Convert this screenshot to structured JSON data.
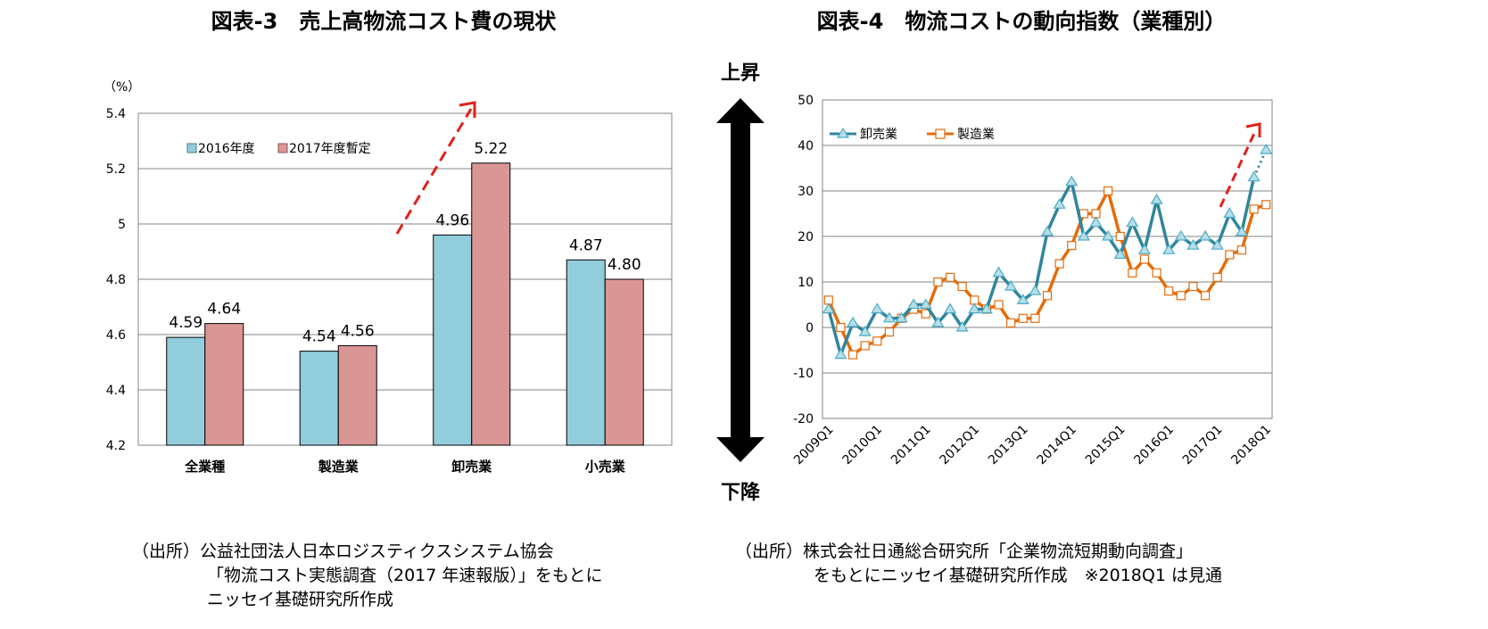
{
  "chart_data": [
    {
      "type": "bar",
      "title": "図表-3　売上高物流コスト費の現状",
      "unit_label": "（%）",
      "categories": [
        "全業種",
        "製造業",
        "卸売業",
        "小売業"
      ],
      "series": [
        {
          "name": "2016年度",
          "values": [
            4.59,
            4.54,
            4.96,
            4.87
          ],
          "labels": [
            "4.59",
            "4.54",
            "4.96",
            "4.87"
          ],
          "color": "#92cddc"
        },
        {
          "name": "2017年度暫定",
          "values": [
            4.64,
            4.56,
            5.22,
            4.8
          ],
          "labels": [
            "4.64",
            "4.56",
            "5.22",
            "4.80"
          ],
          "color": "#d99694"
        }
      ],
      "ylim": [
        4.2,
        5.4
      ],
      "yticks": [
        "4.2",
        "4.4",
        "4.6",
        "4.8",
        "5",
        "5.2",
        "5.4"
      ],
      "grid": true,
      "legend": "top-left",
      "source": [
        "（出所）公益社団法人日本ロジスティクスシステム協会",
        "「物流コスト実態調査（2017 年速報版）」をもとに",
        "ニッセイ基礎研究所作成"
      ]
    },
    {
      "type": "line",
      "title": "図表-4　物流コストの動向指数（業種別）",
      "up_label": "上昇",
      "down_label": "下降",
      "x": [
        "2009Q1",
        "2009Q2",
        "2009Q3",
        "2009Q4",
        "2010Q1",
        "2010Q2",
        "2010Q3",
        "2010Q4",
        "2011Q1",
        "2011Q2",
        "2011Q3",
        "2011Q4",
        "2012Q1",
        "2012Q2",
        "2012Q3",
        "2012Q4",
        "2013Q1",
        "2013Q2",
        "2013Q3",
        "2013Q4",
        "2014Q1",
        "2014Q2",
        "2014Q3",
        "2014Q4",
        "2015Q1",
        "2015Q2",
        "2015Q3",
        "2015Q4",
        "2016Q1",
        "2016Q2",
        "2016Q3",
        "2016Q4",
        "2017Q1",
        "2017Q2",
        "2017Q3",
        "2017Q4",
        "2018Q1"
      ],
      "xticks": [
        "2009Q1",
        "2010Q1",
        "2011Q1",
        "2012Q1",
        "2013Q1",
        "2014Q1",
        "2015Q1",
        "2016Q1",
        "2017Q1",
        "2018Q1"
      ],
      "series": [
        {
          "name": "卸売業",
          "color": "#31859c",
          "values": [
            4,
            -6,
            1,
            -1,
            4,
            2,
            2,
            5,
            5,
            1,
            4,
            0,
            4,
            4,
            12,
            9,
            6,
            8,
            21,
            27,
            32,
            20,
            23,
            20,
            16,
            23,
            17,
            28,
            17,
            20,
            18,
            20,
            18,
            25,
            21,
            33,
            39
          ]
        },
        {
          "name": "製造業",
          "color": "#e46c0a",
          "values": [
            6,
            0,
            -6,
            -4,
            -3,
            -1,
            2,
            4,
            3,
            10,
            11,
            9,
            6,
            4,
            5,
            1,
            2,
            2,
            7,
            14,
            18,
            25,
            25,
            30,
            20,
            12,
            15,
            12,
            8,
            7,
            9,
            7,
            11,
            16,
            17,
            26,
            27
          ]
        }
      ],
      "ylim": [
        -20,
        50
      ],
      "yticks": [
        "-20",
        "-10",
        "0",
        "10",
        "20",
        "30",
        "40",
        "50"
      ],
      "legend": "top-left",
      "source": [
        "（出所）株式会社日通総合研究所「企業物流短期動向調査」",
        "をもとにニッセイ基礎研究所作成　※2018Q1 は見通"
      ]
    }
  ]
}
